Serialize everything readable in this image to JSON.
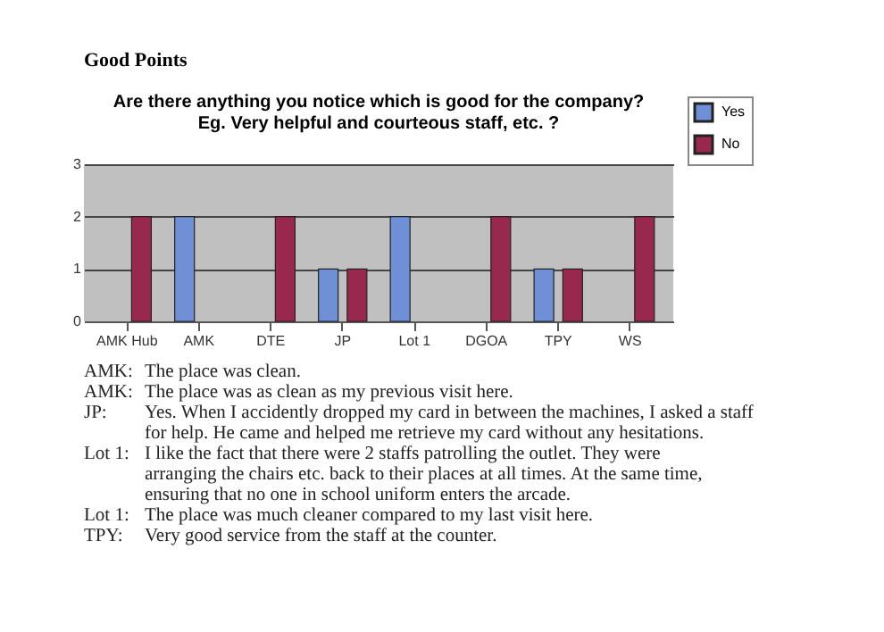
{
  "chart_data": {
    "type": "bar",
    "title": "Are there anything you notice which is good for the company?\nEg. Very helpful and courteous staff, etc. ?",
    "categories": [
      "AMK Hub",
      "AMK",
      "DTE",
      "JP",
      "Lot 1",
      "DGOA",
      "TPY",
      "WS"
    ],
    "series": [
      {
        "name": "Yes",
        "color": "#6f8fd6",
        "values": [
          null,
          2,
          null,
          1,
          2,
          null,
          1,
          null
        ]
      },
      {
        "name": "No",
        "color": "#99284e",
        "values": [
          2,
          null,
          2,
          1,
          null,
          2,
          1,
          2
        ]
      }
    ],
    "ylim": [
      0,
      3
    ],
    "yticks": [
      0,
      1,
      2,
      3
    ],
    "grid": "y",
    "legend": "right",
    "annotations": [
      "Good Points",
      "AMK: The place was clean.",
      "AMK: The place was as clean as my previous visit here.",
      "JP: Yes. When I accidently dropped my card in between the machines, I asked a staff for help. He came and helped me retrieve my card without any hesitations.",
      "Lot 1: I like the fact that there were 2 staffs patrolling the outlet. They were arranging the chairs etc. back to their places at all times. At the same time, ensuring that no one in school uniform enters the arcade.",
      "Lot 1: The place was much cleaner compared to my last visit here.",
      "TPY: Very good service from the staff at the counter."
    ]
  }
}
